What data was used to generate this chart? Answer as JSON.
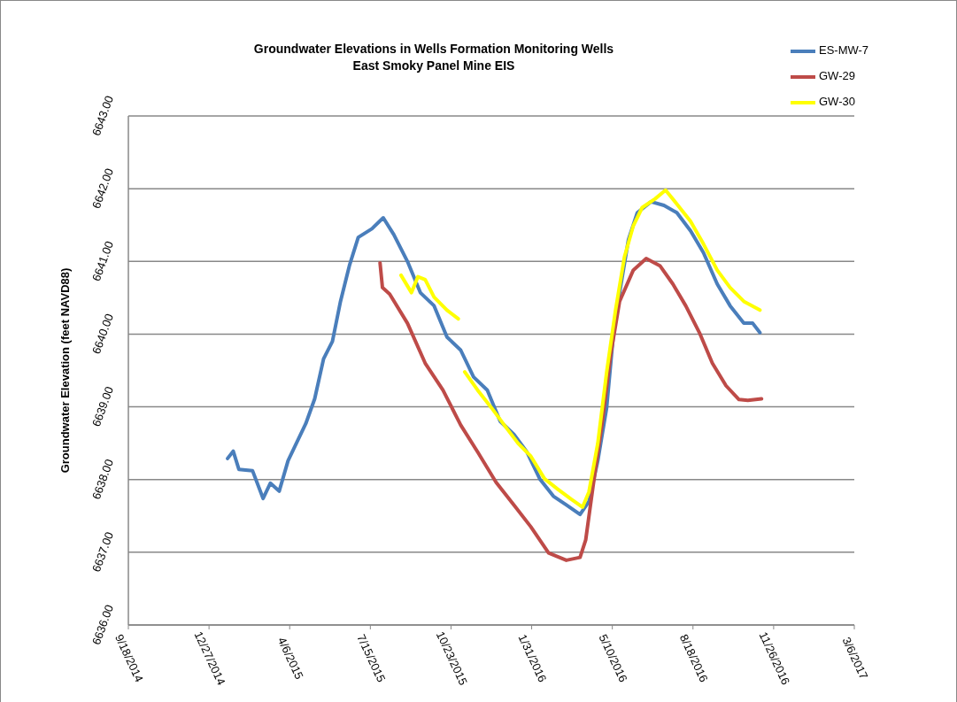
{
  "chart_data": {
    "type": "line",
    "title": "Groundwater Elevations in Wells Formation Monitoring Wells",
    "subtitle": "East Smoky Panel Mine EIS",
    "ylabel": "Groundwater Elevation (feet NAVD88)",
    "xlim": [
      "2014-09-18",
      "2017-03-06"
    ],
    "xticks": [
      {
        "value": "2014-09-18",
        "label": "9/18/2014"
      },
      {
        "value": "2014-12-27",
        "label": "12/27/2014"
      },
      {
        "value": "2015-04-06",
        "label": "4/6/2015"
      },
      {
        "value": "2015-07-15",
        "label": "7/15/2015"
      },
      {
        "value": "2015-10-23",
        "label": "10/23/2015"
      },
      {
        "value": "2016-01-31",
        "label": "1/31/2016"
      },
      {
        "value": "2016-05-10",
        "label": "5/10/2016"
      },
      {
        "value": "2016-08-18",
        "label": "8/18/2016"
      },
      {
        "value": "2016-11-26",
        "label": "11/26/2016"
      },
      {
        "value": "2017-03-06",
        "label": "3/6/2017"
      }
    ],
    "ylim": [
      6636,
      6643
    ],
    "yticks": [
      {
        "value": 6636,
        "label": "6636.00"
      },
      {
        "value": 6637,
        "label": "6637.00"
      },
      {
        "value": 6638,
        "label": "6638.00"
      },
      {
        "value": 6639,
        "label": "6639.00"
      },
      {
        "value": 6640,
        "label": "6640.00"
      },
      {
        "value": 6641,
        "label": "6641.00"
      },
      {
        "value": 6642,
        "label": "6642.00"
      },
      {
        "value": 6643,
        "label": "6643.00"
      }
    ],
    "grid": "y",
    "legend": "top right",
    "marker": "none",
    "line_style": "solid",
    "series": [
      {
        "name": "ES-MW-7",
        "color": "#4a7ebb",
        "x": [
          "2015-01-19",
          "2015-01-26",
          "2015-02-02",
          "2015-02-19",
          "2015-03-04",
          "2015-03-13",
          "2015-03-24",
          "2015-04-04",
          "2015-04-26",
          "2015-05-07",
          "2015-05-18",
          "2015-05-29",
          "2015-06-08",
          "2015-06-19",
          "2015-06-30",
          "2015-07-17",
          "2015-07-31",
          "2015-08-13",
          "2015-08-30",
          "2015-09-15",
          "2015-10-02",
          "2015-10-18",
          "2015-11-04",
          "2015-11-20",
          "2015-12-07",
          "2015-12-23",
          "2016-01-09",
          "2016-01-25",
          "2016-02-10",
          "2016-02-27",
          "2016-03-14",
          "2016-03-31",
          "2016-04-11",
          "2016-04-22",
          "2016-05-03",
          "2016-05-11",
          "2016-05-19",
          "2016-05-30",
          "2016-06-10",
          "2016-06-27",
          "2016-07-13",
          "2016-07-29",
          "2016-08-15",
          "2016-08-31",
          "2016-09-17",
          "2016-10-03",
          "2016-10-20",
          "2016-10-31",
          "2016-11-09"
        ],
        "values": [
          6638.29,
          6638.39,
          6638.14,
          6638.12,
          6637.74,
          6637.95,
          6637.84,
          6638.26,
          6638.77,
          6639.11,
          6639.66,
          6639.9,
          6640.45,
          6640.94,
          6641.33,
          6641.45,
          6641.6,
          6641.37,
          6641.0,
          6640.57,
          6640.39,
          6639.96,
          6639.78,
          6639.41,
          6639.23,
          6638.8,
          6638.62,
          6638.38,
          6638.01,
          6637.77,
          6637.65,
          6637.52,
          6637.7,
          6638.26,
          6638.99,
          6639.96,
          6640.57,
          6641.3,
          6641.67,
          6641.82,
          6641.77,
          6641.67,
          6641.42,
          6641.12,
          6640.69,
          6640.39,
          6640.15,
          6640.15,
          6640.02
        ]
      },
      {
        "name": "GW-29",
        "color": "#be4b48",
        "x": [
          "2015-07-27",
          "2015-07-30",
          "2015-08-08",
          "2015-08-30",
          "2015-09-21",
          "2015-10-13",
          "2015-11-04",
          "2015-11-25",
          "2015-12-18",
          "2016-01-09",
          "2016-01-30",
          "2016-02-21",
          "2016-03-14",
          "2016-03-31",
          "2016-04-07",
          "2016-04-16",
          "2016-04-27",
          "2016-05-08",
          "2016-05-19",
          "2016-06-05",
          "2016-06-21",
          "2016-07-08",
          "2016-07-24",
          "2016-08-09",
          "2016-08-26",
          "2016-09-11",
          "2016-09-28",
          "2016-10-14",
          "2016-10-25",
          "2016-11-11"
        ],
        "values": [
          6640.98,
          6640.64,
          6640.55,
          6640.15,
          6639.6,
          6639.23,
          6638.75,
          6638.38,
          6637.96,
          6637.65,
          6637.35,
          6636.99,
          6636.89,
          6636.93,
          6637.17,
          6637.9,
          6638.75,
          6639.72,
          6640.45,
          6640.88,
          6641.04,
          6640.94,
          6640.69,
          6640.39,
          6640.02,
          6639.6,
          6639.29,
          6639.1,
          6639.09,
          6639.11
        ]
      },
      {
        "name": "GW-30",
        "color": "#ffff00",
        "x": [
          "2015-08-22",
          "2015-09-04",
          "2015-09-12",
          "2015-09-21",
          "2015-10-02",
          "2015-10-18",
          "2015-11-01",
          "2015-11-05",
          "2015-11-09",
          "2015-11-25",
          "2015-12-12",
          "2015-12-28",
          "2016-01-14",
          "2016-01-30",
          "2016-02-16",
          "2016-03-03",
          "2016-03-20",
          "2016-04-03",
          "2016-04-11",
          "2016-04-22",
          "2016-05-03",
          "2016-05-14",
          "2016-05-25",
          "2016-06-05",
          "2016-06-16",
          "2016-07-02",
          "2016-07-15",
          "2016-07-29",
          "2016-08-15",
          "2016-08-31",
          "2016-09-17",
          "2016-10-03",
          "2016-10-20",
          "2016-11-09"
        ],
        "values": [
          6640.81,
          6640.57,
          6640.79,
          6640.75,
          6640.51,
          6640.33,
          6640.21,
          null,
          6639.48,
          6639.23,
          6638.99,
          6638.75,
          6638.5,
          6638.32,
          6638.01,
          6637.87,
          6637.73,
          6637.62,
          6637.83,
          6638.5,
          6639.48,
          6640.33,
          6641.06,
          6641.49,
          6641.74,
          6641.86,
          6641.98,
          6641.79,
          6641.55,
          6641.24,
          6640.88,
          6640.64,
          6640.45,
          6640.33
        ]
      }
    ]
  }
}
